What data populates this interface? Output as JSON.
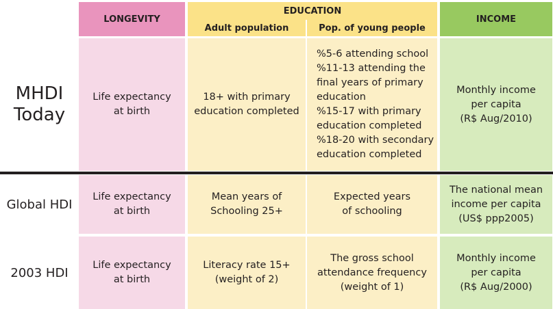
{
  "headers": {
    "longevity": "LONGEVITY",
    "education": "EDUCATION",
    "adult_population": "Adult population",
    "young_people": "Pop. of young people",
    "income": "INCOME"
  },
  "rows": [
    {
      "label_lines": [
        "MHDI",
        "Today"
      ],
      "longevity_lines": [
        "Life expectancy",
        "at birth"
      ],
      "adult_lines": [
        "18+ with primary",
        "education completed"
      ],
      "young_lines": [
        "%5-6 attending school",
        "%11-13 attending the",
        "final years of primary",
        "education",
        "%15-17 with primary",
        "education completed",
        "%18-20 with secondary",
        "education completed"
      ],
      "income_lines": [
        "Monthly income",
        "per capita",
        "(R$ Aug/2010)"
      ]
    },
    {
      "label": "Global HDI",
      "longevity_lines": [
        "Life expectancy",
        "at birth"
      ],
      "adult_lines": [
        "Mean years of",
        "Schooling 25+"
      ],
      "young_lines": [
        "Expected years",
        "of schooling"
      ],
      "income_lines": [
        "The national mean",
        "income per capita",
        "(US$ ppp2005)"
      ]
    },
    {
      "label": "2003 HDI",
      "longevity_lines": [
        "Life expectancy",
        "at birth"
      ],
      "adult_lines": [
        "Literacy rate 15+",
        "(weight of 2)"
      ],
      "young_lines": [
        "The gross school",
        "attendance frequency",
        "(weight of 1)"
      ],
      "income_lines": [
        "Monthly income",
        "per capita",
        "(R$ Aug/2000)"
      ]
    }
  ],
  "colors": {
    "longevity_header": "#e994bd",
    "longevity_body": "#f6d9e7",
    "education_header": "#fbe288",
    "education_body": "#fcefc6",
    "income_header": "#98c960",
    "income_body": "#d7ebbd",
    "divider": "#231f20"
  }
}
